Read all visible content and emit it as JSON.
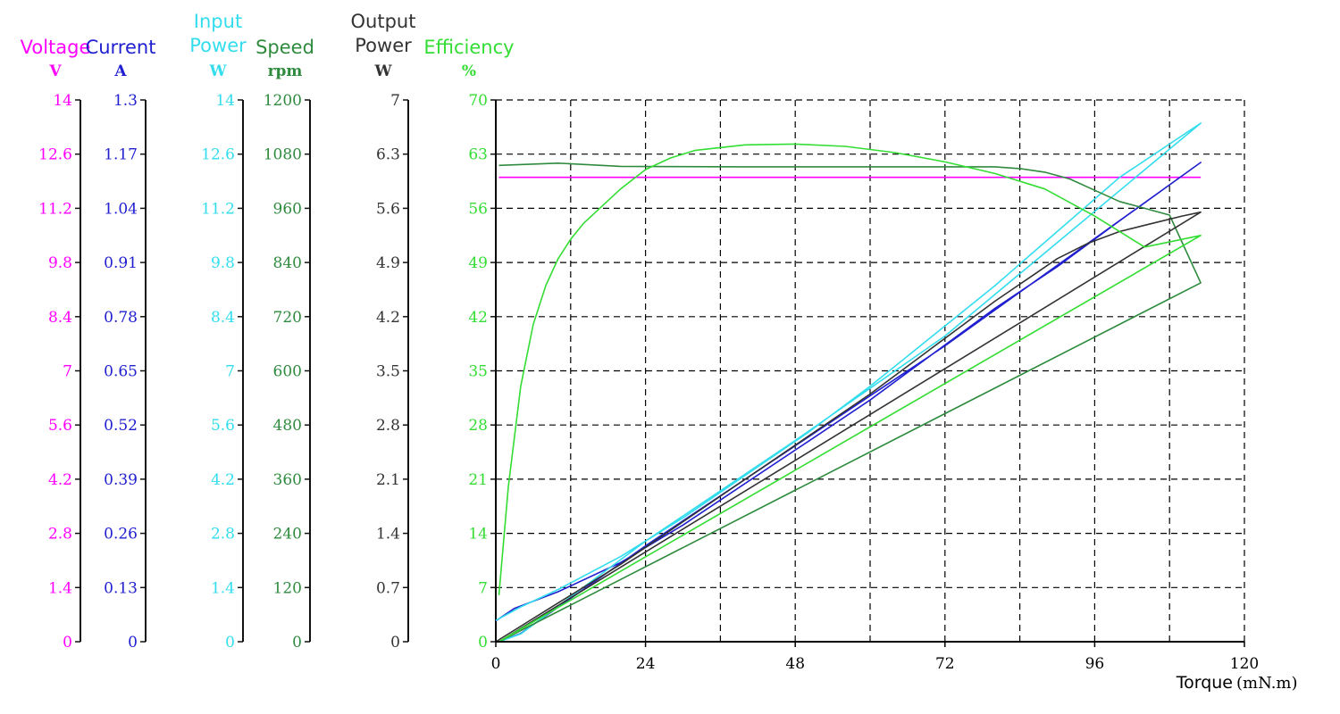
{
  "chart_data": {
    "type": "line",
    "x_axis": {
      "label": "Torque",
      "unit": "(mN.m)",
      "min": 0,
      "max": 120,
      "ticks": [
        "0",
        "24",
        "48",
        "72",
        "96",
        "120"
      ]
    },
    "grid": true,
    "grid_style": "dashed",
    "y_axes": [
      {
        "id": "voltage",
        "title": [
          "Voltage"
        ],
        "unit": "V",
        "color": "#ff00ff",
        "min": 0,
        "max": 14,
        "ticks": [
          "0",
          "1.4",
          "2.8",
          "4.2",
          "5.6",
          "7",
          "8.4",
          "9.8",
          "11.2",
          "12.6",
          "14"
        ]
      },
      {
        "id": "current",
        "title": [
          "Current"
        ],
        "unit": "A",
        "color": "#2020d0",
        "min": 0,
        "max": 1.3,
        "ticks": [
          "0",
          "0.13",
          "0.26",
          "0.39",
          "0.52",
          "0.65",
          "0.78",
          "0.91",
          "1.04",
          "1.17",
          "1.3"
        ]
      },
      {
        "id": "input_power",
        "title": [
          "Input",
          "Power"
        ],
        "unit": "W",
        "color": "#33ddee",
        "min": 0,
        "max": 14,
        "ticks": [
          "0",
          "1.4",
          "2.8",
          "4.2",
          "5.6",
          "7",
          "8.4",
          "9.8",
          "11.2",
          "12.6",
          "14"
        ]
      },
      {
        "id": "speed",
        "title": [
          "Speed"
        ],
        "unit": "rpm",
        "color": "#2e8b3e",
        "min": 0,
        "max": 1200,
        "ticks": [
          "0",
          "120",
          "240",
          "360",
          "480",
          "600",
          "720",
          "840",
          "960",
          "1080",
          "1200"
        ]
      },
      {
        "id": "output_power",
        "title": [
          "Output",
          "Power"
        ],
        "unit": "W",
        "color": "#333333",
        "min": 0,
        "max": 7,
        "ticks": [
          "0",
          "0.7",
          "1.4",
          "2.1",
          "2.8",
          "3.5",
          "4.2",
          "4.9",
          "5.6",
          "6.3",
          "7"
        ]
      },
      {
        "id": "efficiency",
        "title": [
          "Efficiency"
        ],
        "unit": "%",
        "color": "#33dd33",
        "min": 0,
        "max": 70,
        "ticks": [
          "0",
          "7",
          "14",
          "21",
          "28",
          "35",
          "42",
          "49",
          "56",
          "63",
          "70"
        ]
      }
    ],
    "series": [
      {
        "axis": "voltage",
        "color": "#ff00ff",
        "x": [
          0.5,
          113
        ],
        "y": [
          12,
          12
        ]
      },
      {
        "axis": "current",
        "color": "#2020d0",
        "x": [
          0,
          3,
          10,
          20,
          30,
          40,
          50,
          60,
          70,
          80,
          90,
          100,
          113,
          72,
          48,
          24,
          4,
          0.5
        ],
        "y": [
          0.05,
          0.08,
          0.12,
          0.19,
          0.28,
          0.38,
          0.48,
          0.58,
          0.69,
          0.8,
          0.9,
          1.01,
          1.15,
          0.71,
          0.47,
          0.23,
          0.02,
          0.0
        ]
      },
      {
        "axis": "input_power",
        "color": "#33ddee",
        "x": [
          0,
          4,
          10,
          20,
          30,
          40,
          50,
          60,
          70,
          80,
          90,
          100,
          113,
          72,
          48,
          24,
          4,
          0.5
        ],
        "y": [
          0.55,
          0.9,
          1.35,
          2.2,
          3.2,
          4.3,
          5.4,
          6.6,
          7.9,
          9.2,
          10.6,
          12.0,
          13.4,
          7.9,
          5.2,
          2.6,
          0.2,
          0.0
        ]
      },
      {
        "axis": "speed",
        "color": "#2e8b3e",
        "x": [
          0.5,
          10,
          20,
          40,
          60,
          70,
          80,
          84,
          88,
          92,
          96,
          100,
          104,
          108,
          113,
          0.5
        ],
        "y": [
          1055,
          1060,
          1053,
          1052,
          1052,
          1052,
          1052,
          1048,
          1040,
          1025,
          1000,
          975,
          960,
          945,
          795,
          0
        ]
      },
      {
        "axis": "output_power",
        "color": "#333333",
        "x": [
          0,
          10,
          20,
          30,
          40,
          50,
          60,
          70,
          80,
          90,
          95,
          100,
          105,
          110,
          113,
          0.5
        ],
        "y": [
          0.0,
          0.5,
          1.0,
          1.55,
          2.1,
          2.65,
          3.2,
          3.8,
          4.4,
          4.95,
          5.15,
          5.3,
          5.4,
          5.5,
          5.55,
          0.0
        ]
      },
      {
        "axis": "efficiency",
        "color": "#33dd33",
        "x": [
          0.5,
          2,
          4,
          6,
          8,
          10,
          12,
          14,
          16,
          18,
          20,
          24,
          28,
          32,
          40,
          48,
          56,
          64,
          72,
          80,
          88,
          96,
          104,
          113,
          0.5
        ],
        "y": [
          6,
          20,
          33,
          41,
          46,
          49.5,
          52,
          54,
          55.5,
          57,
          58.5,
          61,
          62.5,
          63.5,
          64.2,
          64.3,
          64,
          63.2,
          62,
          60.5,
          58.5,
          55,
          51,
          52.5,
          0
        ]
      }
    ]
  }
}
